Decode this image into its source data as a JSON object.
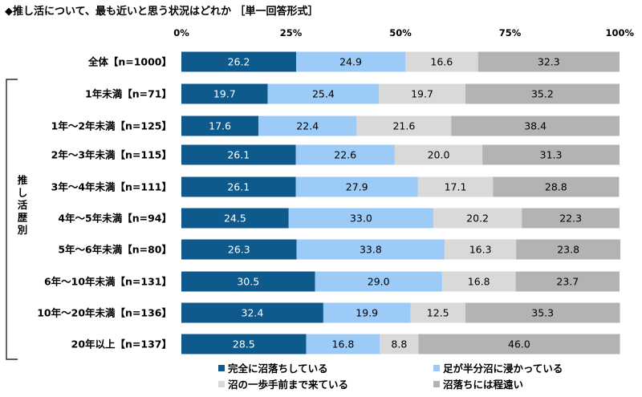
{
  "chart_data": {
    "type": "bar",
    "orientation": "horizontal",
    "stacked": true,
    "title": "◆推し活について、最も近いと思う状況はどれか ［単一回答形式］",
    "xlim": [
      0,
      100
    ],
    "x_ticks": [
      "0%",
      "25%",
      "50%",
      "75%",
      "100%"
    ],
    "group_label": "推し活歴別",
    "categories": [
      "全体【n=1000】",
      "1年未満【n=71】",
      "1年～2年未満【n=125】",
      "2年～3年未満【n=115】",
      "3年～4年未満【n=111】",
      "4年～5年未満【n=94】",
      "5年～6年未満【n=80】",
      "6年～10年未満【n=131】",
      "10年～20年未満【n=136】",
      "20年以上【n=137】"
    ],
    "series": [
      {
        "name": "完全に沼落ちしている",
        "color": "#0f5a8c",
        "values": [
          26.2,
          19.7,
          17.6,
          26.1,
          26.1,
          24.5,
          26.3,
          30.5,
          32.4,
          28.5
        ]
      },
      {
        "name": "足が半分沼に浸かっている",
        "color": "#9dcbf7",
        "values": [
          24.9,
          25.4,
          22.4,
          22.6,
          27.9,
          33.0,
          33.8,
          29.0,
          19.9,
          16.8
        ]
      },
      {
        "name": "沼の一歩手前まで来ている",
        "color": "#d9d9d9",
        "values": [
          16.6,
          19.7,
          21.6,
          20.0,
          17.1,
          20.2,
          16.3,
          16.8,
          12.5,
          8.8
        ]
      },
      {
        "name": "沼落ちには程遠い",
        "color": "#b3b3b3",
        "values": [
          32.3,
          35.2,
          38.4,
          31.3,
          28.8,
          22.3,
          23.8,
          23.7,
          35.3,
          46.0
        ]
      }
    ],
    "legend_position": "bottom-right"
  }
}
